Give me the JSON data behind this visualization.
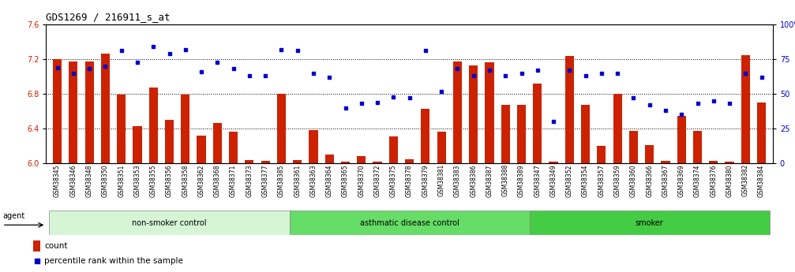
{
  "title": "GDS1269 / 216911_s_at",
  "samples": [
    "GSM38345",
    "GSM38346",
    "GSM38348",
    "GSM38350",
    "GSM38351",
    "GSM38353",
    "GSM38355",
    "GSM38356",
    "GSM38358",
    "GSM38362",
    "GSM38368",
    "GSM38371",
    "GSM38373",
    "GSM38377",
    "GSM38385",
    "GSM38361",
    "GSM38363",
    "GSM38364",
    "GSM38365",
    "GSM38370",
    "GSM38372",
    "GSM38375",
    "GSM38378",
    "GSM38379",
    "GSM38381",
    "GSM38383",
    "GSM38386",
    "GSM38387",
    "GSM38388",
    "GSM38389",
    "GSM38347",
    "GSM38349",
    "GSM38352",
    "GSM38354",
    "GSM38357",
    "GSM38359",
    "GSM38360",
    "GSM38366",
    "GSM38367",
    "GSM38369",
    "GSM38374",
    "GSM38376",
    "GSM38380",
    "GSM38382",
    "GSM38384"
  ],
  "bar_values": [
    7.2,
    7.17,
    7.17,
    7.26,
    6.79,
    6.43,
    6.87,
    6.5,
    6.79,
    6.32,
    6.46,
    6.36,
    6.04,
    6.03,
    6.8,
    6.04,
    6.38,
    6.1,
    6.02,
    6.08,
    6.02,
    6.31,
    6.05,
    6.63,
    6.36,
    7.17,
    7.13,
    7.16,
    6.67,
    6.67,
    6.92,
    6.02,
    7.24,
    6.67,
    6.2,
    6.8,
    6.37,
    6.21,
    6.03,
    6.55,
    6.37,
    6.03,
    6.02,
    7.25,
    6.7
  ],
  "percentile_values": [
    69,
    65,
    68,
    70,
    81,
    73,
    84,
    79,
    82,
    66,
    73,
    68,
    63,
    63,
    82,
    81,
    65,
    62,
    40,
    43,
    44,
    48,
    47,
    81,
    52,
    68,
    63,
    67,
    63,
    65,
    67,
    30,
    67,
    63,
    65,
    65,
    47,
    42,
    38,
    35,
    43,
    45,
    43,
    65,
    62
  ],
  "groups": [
    {
      "label": "non-smoker control",
      "start": 0,
      "end": 15,
      "color": "#d5f5d5"
    },
    {
      "label": "asthmatic disease control",
      "start": 15,
      "end": 30,
      "color": "#66dd66"
    },
    {
      "label": "smoker",
      "start": 30,
      "end": 45,
      "color": "#44cc44"
    }
  ],
  "ylim_left": [
    6.0,
    7.6
  ],
  "ylim_right": [
    0,
    100
  ],
  "yticks_left": [
    6.0,
    6.4,
    6.8,
    7.2,
    7.6
  ],
  "yticks_right": [
    0,
    25,
    50,
    75,
    100
  ],
  "bar_color": "#cc2200",
  "dot_color": "#0000cc",
  "bar_width": 0.55,
  "title_fontsize": 9,
  "tick_fontsize": 7,
  "label_fontsize": 7.5
}
